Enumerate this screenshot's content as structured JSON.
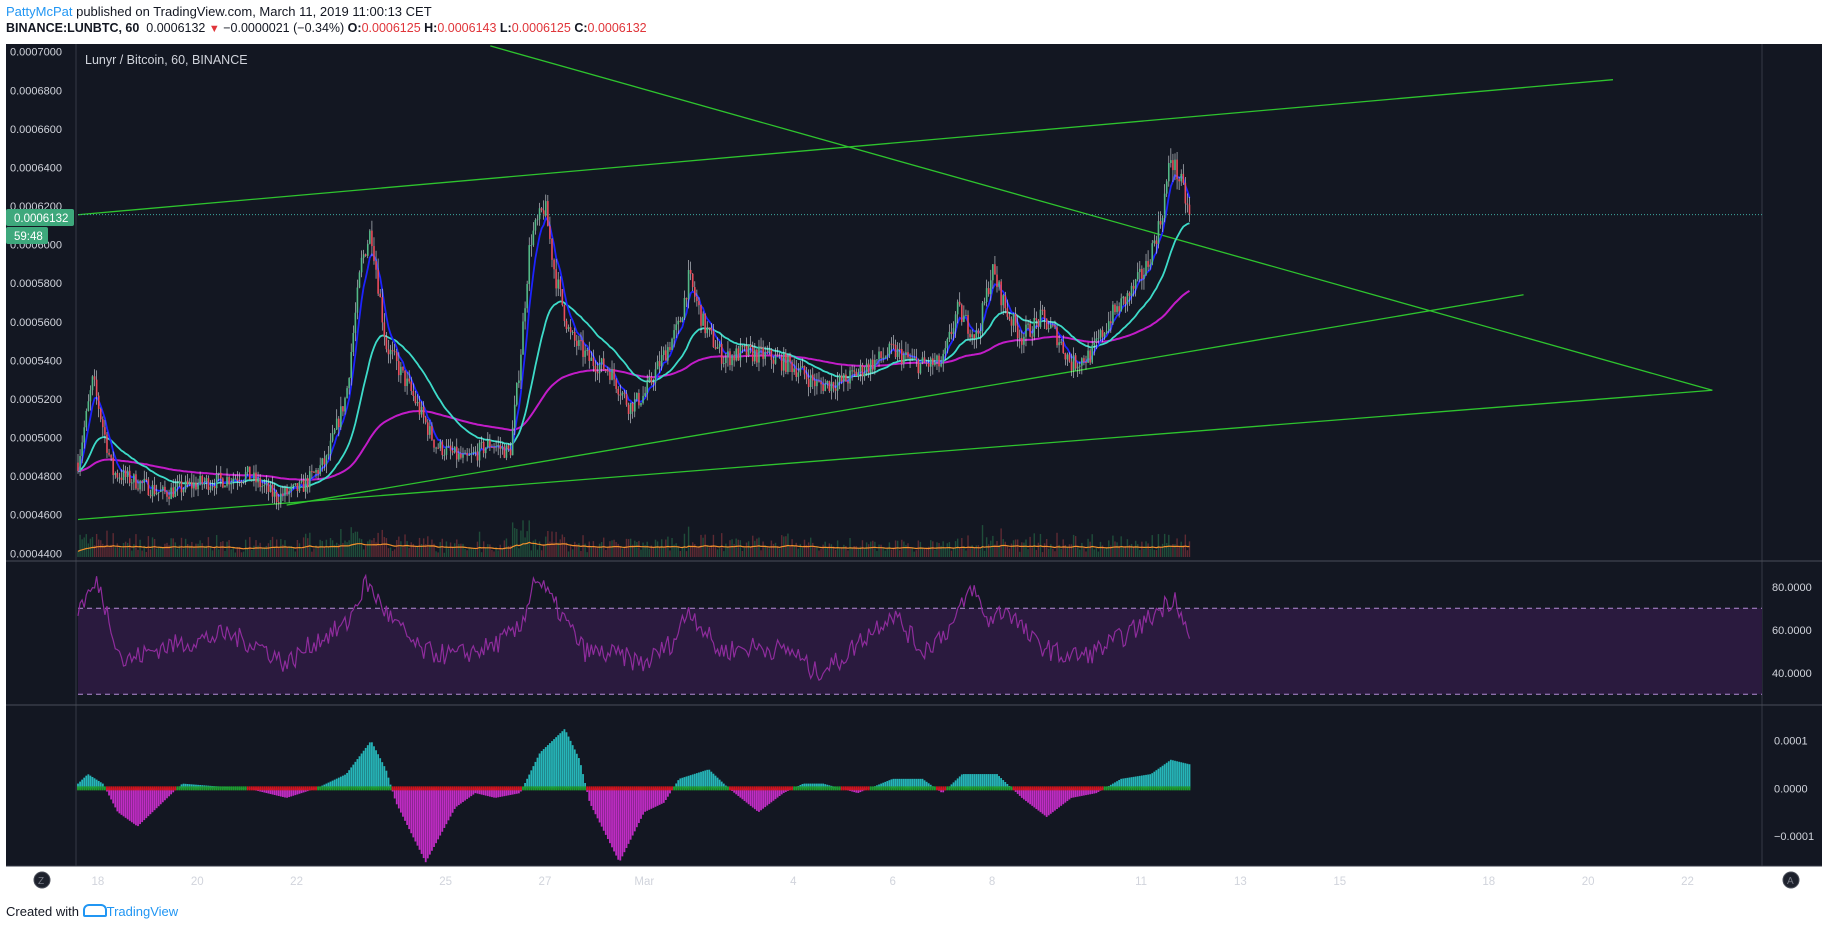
{
  "header": {
    "author": "PattyMcPat",
    "published_text": "published on TradingView.com, March 11, 2019 11:00:13 CET",
    "symbol": "BINANCE:LUNBTC, 60",
    "last": "0.0006132",
    "change": "−0.0000021 (−0.34%)",
    "open_label": "O:",
    "open": "0.0006125",
    "high_label": "H:",
    "high": "0.0006143",
    "low_label": "L:",
    "low": "0.0006125",
    "close_label": "C:",
    "close": "0.0006132"
  },
  "footer": {
    "created_with": "Created with",
    "brand": "TradingView"
  },
  "corner_buttons": {
    "left": "Z",
    "right": "A"
  },
  "colors": {
    "background": "#131722",
    "up": "#53b987",
    "down": "#eb4d5c",
    "trendline": "#2ec42e",
    "ma_fast": "#1d23ff",
    "ma_mid": "#3ddbc9",
    "ma_slow": "#c21cc8",
    "volume_ma": "#f2902c",
    "rsi": "#8e2c9c",
    "hist_pos": "#26b5b8",
    "hist_neg": "#c02cc4",
    "price_tag": "#3ea87c"
  },
  "chart_data": [
    {
      "type": "candlestick",
      "title": "Lunyr / Bitcoin, 60, BINANCE",
      "price_tag": "0.0006132",
      "countdown": "59:48",
      "x_tick_labels": [
        "18",
        "20",
        "22",
        "25",
        "27",
        "Mar",
        "4",
        "6",
        "8",
        "11",
        "13",
        "15",
        "18",
        "20",
        "22"
      ],
      "x_tick_days": [
        18,
        20,
        22,
        25,
        27,
        29,
        32,
        34,
        36,
        39,
        41,
        43,
        46,
        48,
        50
      ],
      "xlim_days": [
        17.6,
        51.5
      ],
      "y_tick_labels": [
        "0.0007000",
        "0.0006800",
        "0.0006600",
        "0.0006400",
        "0.0006200",
        "0.0006000",
        "0.0005800",
        "0.0005600",
        "0.0005400",
        "0.0005200",
        "0.0005000",
        "0.0004800",
        "0.0004600",
        "0.0004400"
      ],
      "ylim": [
        0.000436,
        0.000704
      ],
      "series_anchors_close": [
        [
          17.6,
          0.000487
        ],
        [
          17.9,
          0.00053
        ],
        [
          18.3,
          0.000482
        ],
        [
          18.7,
          0.000478
        ],
        [
          19.3,
          0.000471
        ],
        [
          20,
          0.000476
        ],
        [
          20.5,
          0.000478
        ],
        [
          21,
          0.000481
        ],
        [
          21.6,
          0.000469
        ],
        [
          22.1,
          0.000474
        ],
        [
          22.6,
          0.000488
        ],
        [
          23.0,
          0.000522
        ],
        [
          23.3,
          0.00059
        ],
        [
          23.5,
          0.000608
        ],
        [
          23.8,
          0.000548
        ],
        [
          24.3,
          0.000524
        ],
        [
          24.8,
          0.000496
        ],
        [
          25.4,
          0.000488
        ],
        [
          25.9,
          0.000497
        ],
        [
          26.3,
          0.000492
        ],
        [
          26.5,
          0.00054
        ],
        [
          26.7,
          0.000602
        ],
        [
          27.0,
          0.00062
        ],
        [
          27.2,
          0.000585
        ],
        [
          27.5,
          0.000553
        ],
        [
          27.9,
          0.00054
        ],
        [
          28.3,
          0.000535
        ],
        [
          28.7,
          0.000516
        ],
        [
          29.0,
          0.000522
        ],
        [
          29.3,
          0.000538
        ],
        [
          29.7,
          0.000558
        ],
        [
          29.9,
          0.000583
        ],
        [
          30.2,
          0.000558
        ],
        [
          30.6,
          0.000541
        ],
        [
          31.0,
          0.000544
        ],
        [
          31.5,
          0.000542
        ],
        [
          32.0,
          0.000537
        ],
        [
          32.5,
          0.000527
        ],
        [
          33.0,
          0.000529
        ],
        [
          33.5,
          0.000537
        ],
        [
          34.0,
          0.000545
        ],
        [
          34.5,
          0.000538
        ],
        [
          35.0,
          0.000538
        ],
        [
          35.3,
          0.000566
        ],
        [
          35.7,
          0.000552
        ],
        [
          36.0,
          0.000587
        ],
        [
          36.3,
          0.000565
        ],
        [
          36.6,
          0.000552
        ],
        [
          37.0,
          0.000562
        ],
        [
          37.3,
          0.000553
        ],
        [
          37.6,
          0.000538
        ],
        [
          38.0,
          0.000543
        ],
        [
          38.4,
          0.000563
        ],
        [
          38.8,
          0.000575
        ],
        [
          39.1,
          0.000588
        ],
        [
          39.4,
          0.000613
        ],
        [
          39.6,
          0.000645
        ],
        [
          39.8,
          0.000632
        ],
        [
          40.0,
          0.0006132
        ]
      ],
      "moving_averages_end": {
        "fast": 0.000612,
        "mid": 0.000596,
        "slow": 0.000565
      },
      "trendlines": [
        {
          "from": [
            17.6,
            0.0006155
          ],
          "to": [
            48.5,
            0.0006855
          ]
        },
        {
          "from": [
            17.6,
            0.0004575
          ],
          "to": [
            50.5,
            0.0005245
          ]
        },
        {
          "from": [
            21.8,
            0.000465
          ],
          "to": [
            46.7,
            0.000574
          ]
        },
        {
          "from": [
            25.9,
            0.000703
          ],
          "to": [
            50.5,
            0.0005245
          ]
        }
      ]
    },
    {
      "type": "line",
      "name": "RSI",
      "y_tick_labels": [
        "80.0000",
        "60.0000",
        "40.0000"
      ],
      "ylim": [
        25,
        92
      ],
      "levels": [
        70,
        30
      ],
      "series_anchors": [
        [
          17.6,
          70
        ],
        [
          18.0,
          82
        ],
        [
          18.5,
          45
        ],
        [
          19.3,
          52
        ],
        [
          20,
          55
        ],
        [
          20.6,
          58
        ],
        [
          21.3,
          52
        ],
        [
          21.8,
          44
        ],
        [
          22.4,
          55
        ],
        [
          23.0,
          62
        ],
        [
          23.4,
          82
        ],
        [
          23.9,
          65
        ],
        [
          24.5,
          50
        ],
        [
          25.2,
          48
        ],
        [
          25.9,
          52
        ],
        [
          26.5,
          60
        ],
        [
          26.8,
          85
        ],
        [
          27.3,
          68
        ],
        [
          27.8,
          50
        ],
        [
          28.5,
          48
        ],
        [
          29.0,
          44
        ],
        [
          29.6,
          55
        ],
        [
          29.9,
          70
        ],
        [
          30.5,
          50
        ],
        [
          31.2,
          52
        ],
        [
          32,
          50
        ],
        [
          32.4,
          40
        ],
        [
          32.9,
          45
        ],
        [
          33.4,
          56
        ],
        [
          34.0,
          68
        ],
        [
          34.6,
          50
        ],
        [
          35.2,
          62
        ],
        [
          35.6,
          80
        ],
        [
          35.9,
          64
        ],
        [
          36.3,
          70
        ],
        [
          36.8,
          55
        ],
        [
          37.4,
          48
        ],
        [
          37.9,
          48
        ],
        [
          38.5,
          55
        ],
        [
          39.0,
          62
        ],
        [
          39.4,
          70
        ],
        [
          39.7,
          76
        ],
        [
          40.0,
          52
        ]
      ]
    },
    {
      "type": "bar",
      "name": "Histogram",
      "y_tick_labels": [
        "0.0001",
        "0.0000",
        "−0.0001"
      ],
      "ylim": [
        -0.000163,
        0.000175
      ],
      "anchors": [
        [
          17.6,
          1e-05
        ],
        [
          17.8,
          3e-05
        ],
        [
          18.1,
          1e-05
        ],
        [
          18.4,
          -5e-05
        ],
        [
          18.8,
          -8e-05
        ],
        [
          19.3,
          -3e-05
        ],
        [
          19.7,
          1e-05
        ],
        [
          20.3,
          5e-06
        ],
        [
          21.0,
          0.0
        ],
        [
          21.8,
          -2e-05
        ],
        [
          22.4,
          0.0
        ],
        [
          23.0,
          3e-05
        ],
        [
          23.5,
          0.0001
        ],
        [
          23.8,
          4e-05
        ],
        [
          24.0,
          -3e-05
        ],
        [
          24.6,
          -0.000155
        ],
        [
          25.2,
          -4e-05
        ],
        [
          25.6,
          -1e-05
        ],
        [
          26.0,
          -2e-05
        ],
        [
          26.5,
          -1e-05
        ],
        [
          26.9,
          7.5e-05
        ],
        [
          27.4,
          0.000125
        ],
        [
          27.7,
          6e-05
        ],
        [
          27.9,
          -3e-05
        ],
        [
          28.5,
          -0.000155
        ],
        [
          29.0,
          -5e-05
        ],
        [
          29.4,
          -3e-05
        ],
        [
          29.7,
          2e-05
        ],
        [
          30.3,
          4e-05
        ],
        [
          30.7,
          0.0
        ],
        [
          31.3,
          -5e-05
        ],
        [
          31.8,
          -1e-05
        ],
        [
          32.2,
          1e-05
        ],
        [
          32.6,
          1e-05
        ],
        [
          33.3,
          -1e-05
        ],
        [
          34.0,
          2e-05
        ],
        [
          34.6,
          2e-05
        ],
        [
          35.0,
          -1e-05
        ],
        [
          35.4,
          3e-05
        ],
        [
          35.8,
          3e-05
        ],
        [
          36.1,
          3e-05
        ],
        [
          36.6,
          -2e-05
        ],
        [
          37.1,
          -6e-05
        ],
        [
          37.6,
          -2e-05
        ],
        [
          38.1,
          -1e-05
        ],
        [
          38.6,
          2e-05
        ],
        [
          39.2,
          3e-05
        ],
        [
          39.6,
          6e-05
        ],
        [
          40.0,
          5e-05
        ]
      ]
    }
  ]
}
